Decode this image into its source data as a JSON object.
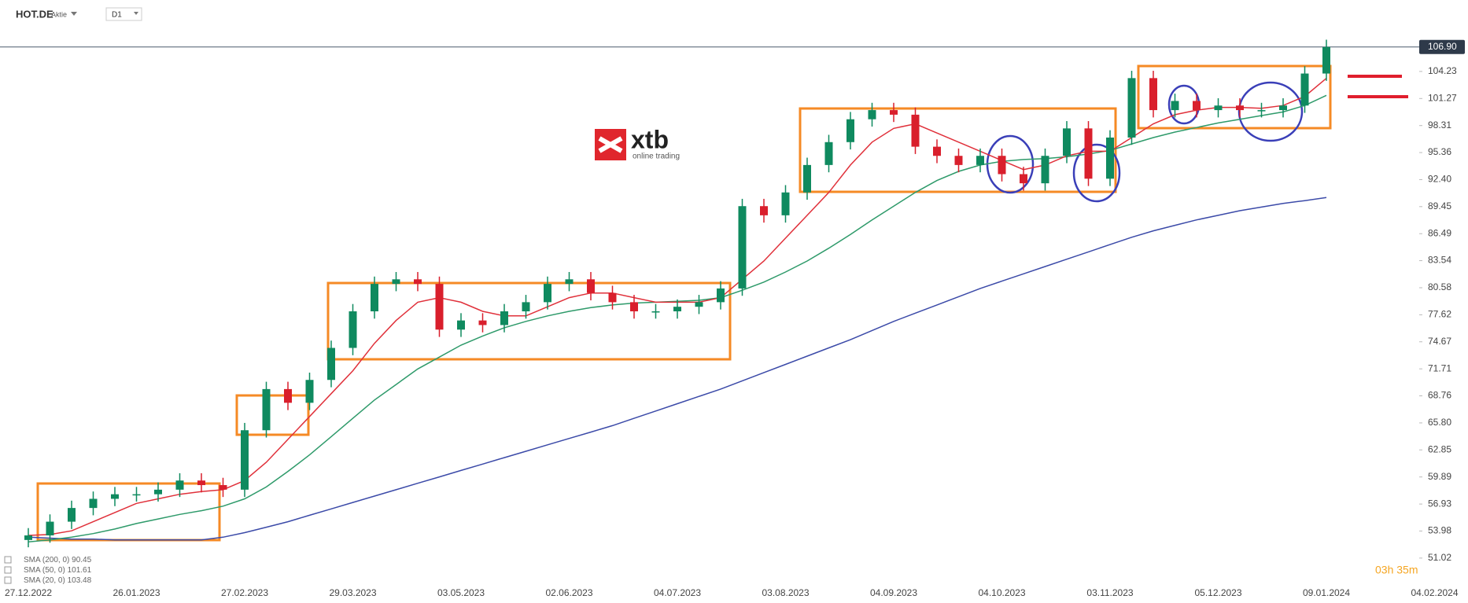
{
  "header": {
    "symbol": "HOT.DE",
    "kind": "Aktie",
    "timeframe": "D1"
  },
  "logo": {
    "name": "xtb",
    "tagline": "online trading"
  },
  "countdown": "03h 35m",
  "chart_data": {
    "type": "candlestick",
    "up_color": "#0f8a5f",
    "down_color": "#d91f2c",
    "categories": [
      "27.12.2022",
      null,
      null,
      null,
      null,
      "26.01.2023",
      null,
      null,
      null,
      null,
      "27.02.2023",
      null,
      null,
      null,
      null,
      "29.03.2023",
      null,
      null,
      null,
      null,
      "03.05.2023",
      null,
      null,
      null,
      null,
      "02.06.2023",
      null,
      null,
      null,
      null,
      "04.07.2023",
      null,
      null,
      null,
      null,
      "03.08.2023",
      null,
      null,
      null,
      null,
      "04.09.2023",
      null,
      null,
      null,
      null,
      "04.10.2023",
      null,
      null,
      null,
      null,
      "03.11.2023",
      null,
      null,
      null,
      null,
      "05.12.2023",
      null,
      null,
      null,
      null,
      "09.01.2024",
      null,
      null,
      null,
      null,
      "04.02.2024"
    ],
    "open": [
      53,
      53.5,
      55,
      56.5,
      57.5,
      58,
      58,
      58.5,
      59.5,
      59,
      58.5,
      65,
      69.5,
      68,
      70.5,
      74,
      78,
      81,
      81.5,
      81,
      76,
      77,
      76.5,
      78,
      79,
      81,
      81.5,
      80,
      79,
      78,
      78,
      78.5,
      79,
      80.5,
      89.5,
      88.5,
      91,
      94,
      96.5,
      99,
      100,
      99.5,
      96,
      95,
      94,
      95,
      93,
      92,
      95,
      98,
      92.5,
      97,
      103.5,
      100,
      101,
      100,
      100.5,
      100,
      100,
      100.5,
      104,
      null,
      null,
      null,
      null,
      null
    ],
    "high": [
      54.3,
      55.8,
      57.3,
      58.3,
      58.8,
      58.8,
      59.3,
      60.3,
      60.3,
      59.8,
      65.8,
      70.3,
      70.3,
      71.3,
      74.8,
      78.8,
      81.8,
      82.3,
      82.3,
      81.8,
      77.8,
      77.8,
      78.8,
      79.8,
      81.8,
      82.3,
      82.3,
      80.8,
      79.8,
      78.8,
      79.3,
      79.8,
      81.3,
      90.3,
      90.3,
      91.8,
      94.8,
      97.3,
      99.8,
      100.8,
      100.8,
      100.3,
      96.8,
      95.8,
      95.8,
      95.8,
      93.8,
      95.8,
      98.8,
      98.8,
      97.8,
      104.3,
      104.3,
      101.8,
      101.8,
      101.3,
      101.3,
      100.8,
      101.3,
      104.8,
      107.7,
      null,
      null,
      null,
      null,
      null
    ],
    "low": [
      52.2,
      52.7,
      54.2,
      55.7,
      56.7,
      57.2,
      57.2,
      57.7,
      58.2,
      57.7,
      57.7,
      64.2,
      67.2,
      67.2,
      69.7,
      73.2,
      77.2,
      80.2,
      80.2,
      75.2,
      75.2,
      75.7,
      75.7,
      77.2,
      78.2,
      80.2,
      79.2,
      78.2,
      77.2,
      77.2,
      77.2,
      77.7,
      78.2,
      79.7,
      87.7,
      87.7,
      90.2,
      93.2,
      95.7,
      98.2,
      98.7,
      95.2,
      94.2,
      93.2,
      93.2,
      92.2,
      91.2,
      91.2,
      94.2,
      91.7,
      91.7,
      96.2,
      99.2,
      99.2,
      99.2,
      99.2,
      99.2,
      99.2,
      99.2,
      99.7,
      103.2,
      null,
      null,
      null,
      null,
      null
    ],
    "close": [
      53.5,
      55,
      56.5,
      57.5,
      58,
      58,
      58.5,
      59.5,
      59,
      58.5,
      65,
      69.5,
      68,
      70.5,
      74,
      78,
      81,
      81.5,
      81,
      76,
      77,
      76.5,
      78,
      79,
      81,
      81.5,
      80,
      79,
      78,
      78,
      78.5,
      79,
      80.5,
      89.5,
      88.5,
      91,
      94,
      96.5,
      99,
      100,
      99.5,
      96,
      95,
      94,
      95,
      93,
      92,
      95,
      98,
      92.5,
      97,
      103.5,
      100,
      101,
      100,
      100.5,
      100,
      100,
      100.5,
      104,
      106.9,
      null,
      null,
      null,
      null,
      null
    ],
    "series": [
      {
        "name": "SMA (200, 0)",
        "color": "#3b4aa8",
        "values": [
          53.3,
          53.2,
          53.1,
          53.1,
          53,
          53,
          53,
          53,
          53,
          53.3,
          53.8,
          54.4,
          55,
          55.7,
          56.4,
          57.1,
          57.8,
          58.5,
          59.2,
          59.9,
          60.6,
          61.3,
          62,
          62.7,
          63.4,
          64.1,
          64.8,
          65.5,
          66.3,
          67.1,
          67.9,
          68.7,
          69.5,
          70.4,
          71.3,
          72.2,
          73.1,
          74,
          74.9,
          75.9,
          76.9,
          77.8,
          78.7,
          79.6,
          80.5,
          81.3,
          82.1,
          82.9,
          83.7,
          84.5,
          85.3,
          86.1,
          86.8,
          87.4,
          88,
          88.5,
          89,
          89.4,
          89.8,
          90.1,
          90.45,
          null,
          null,
          null,
          null,
          null
        ]
      },
      {
        "name": "SMA (50, 0)",
        "color": "#2e9a6a",
        "values": [
          52.8,
          53,
          53.3,
          53.7,
          54.2,
          54.8,
          55.3,
          55.8,
          56.2,
          56.7,
          57.5,
          58.8,
          60.5,
          62.3,
          64.3,
          66.3,
          68.3,
          70,
          71.7,
          73,
          74.3,
          75.3,
          76.2,
          76.9,
          77.5,
          78,
          78.4,
          78.7,
          78.9,
          79,
          79.1,
          79.2,
          79.5,
          80.3,
          81.2,
          82.3,
          83.5,
          84.9,
          86.4,
          88,
          89.5,
          91,
          92.3,
          93.3,
          94,
          94.4,
          94.6,
          94.7,
          94.9,
          95.2,
          95.6,
          96.3,
          97,
          97.6,
          98.1,
          98.6,
          99,
          99.4,
          99.8,
          100.5,
          101.61,
          null,
          null,
          null,
          null,
          null
        ]
      },
      {
        "name": "SMA (20, 0)",
        "color": "#e0303a",
        "values": [
          53.5,
          53.6,
          54,
          55,
          56,
          57,
          57.5,
          58,
          58.3,
          58.5,
          59.5,
          61.5,
          64,
          66.5,
          69,
          71.5,
          74.5,
          77,
          79,
          79.5,
          79,
          78,
          77.5,
          77.5,
          78.5,
          79.5,
          80,
          80,
          79.5,
          79,
          79,
          79,
          79.5,
          81.5,
          83.5,
          86,
          88.5,
          91,
          94,
          96.5,
          98,
          98.5,
          97.5,
          96.5,
          95.5,
          94.5,
          93.5,
          94,
          95,
          95.5,
          95.5,
          97,
          98.5,
          99.5,
          100,
          100.3,
          100.3,
          100.2,
          100.5,
          101.5,
          103.48,
          null,
          null,
          null,
          null,
          null
        ]
      }
    ],
    "ylim": [
      48.86,
      112.04
    ],
    "yticks": [
      51.02,
      53.98,
      56.93,
      59.89,
      62.85,
      {
        "value": 65.8,
        "label": "65.80"
      },
      68.76,
      71.71,
      74.67,
      77.62,
      80.58,
      83.54,
      86.49,
      89.45,
      {
        "value": 92.4,
        "label": "92.40"
      },
      95.36,
      98.31,
      101.27,
      104.23
    ],
    "last_price": {
      "value": 106.9,
      "label": "106.90"
    },
    "grid": false
  }
}
